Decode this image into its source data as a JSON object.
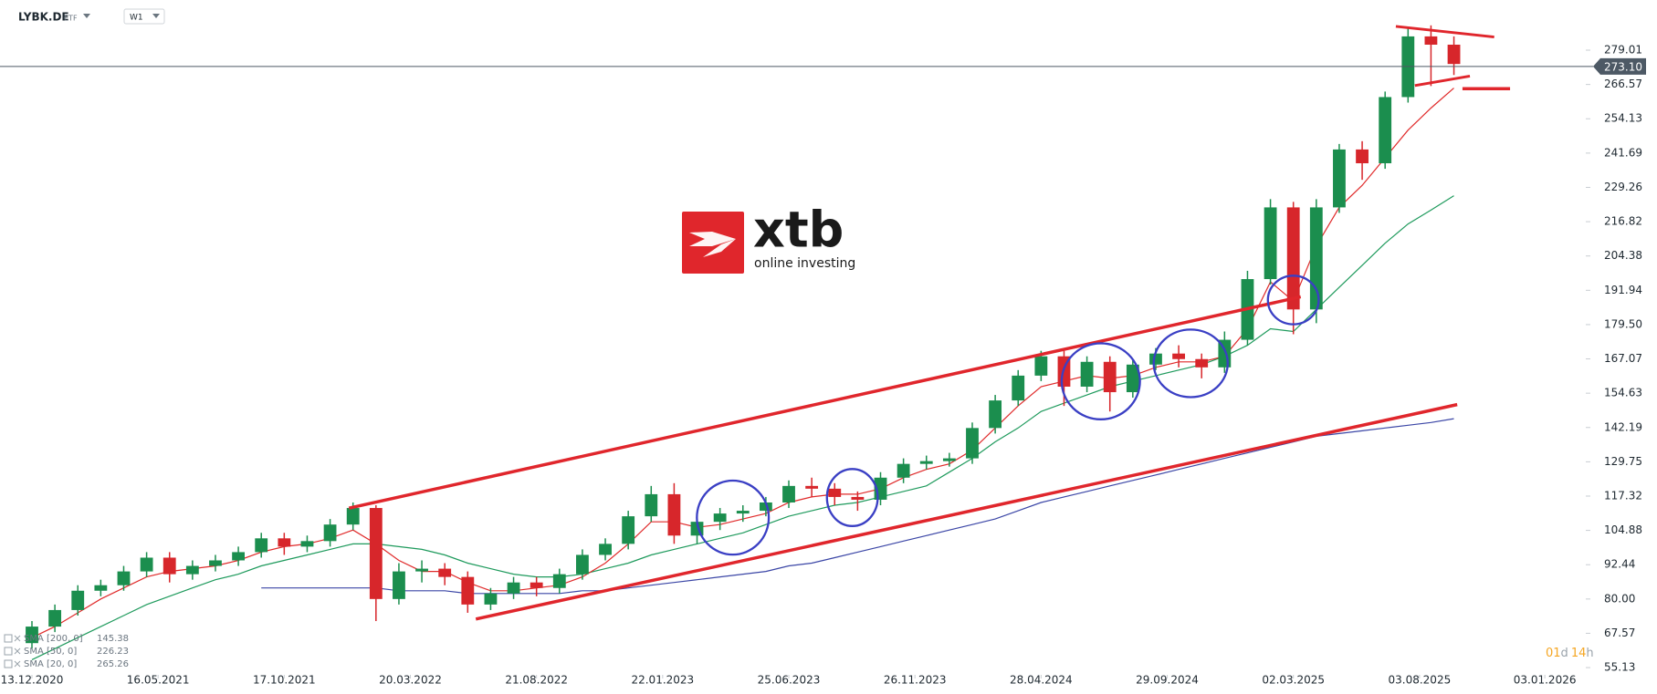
{
  "chart_data": {
    "type": "candlestick",
    "symbol": "LYBK.DE",
    "symbol_type": "ETF",
    "interval": "W1",
    "countdown": {
      "days": "01",
      "days_unit": "d",
      "hours": "14",
      "hours_unit": "h"
    },
    "watermark": {
      "brand": "xtb",
      "tagline": "online investing"
    },
    "up_color": "#1b8e4e",
    "down_color": "#d7262b",
    "grid": false,
    "x": [
      "13.12.2020",
      "10.01.2021",
      "07.02.2021",
      "07.03.2021",
      "04.04.2021",
      "02.05.2021",
      "30.05.2021",
      "27.06.2021",
      "25.07.2021",
      "22.08.2021",
      "19.09.2021",
      "17.10.2021",
      "14.11.2021",
      "12.12.2021",
      "09.01.2022",
      "06.02.2022",
      "06.03.2022",
      "03.04.2022",
      "01.05.2022",
      "29.05.2022",
      "26.06.2022",
      "24.07.2022",
      "21.08.2022",
      "18.09.2022",
      "16.10.2022",
      "13.11.2022",
      "11.12.2022",
      "08.01.2023",
      "05.02.2023",
      "05.03.2023",
      "02.04.2023",
      "30.04.2023",
      "28.05.2023",
      "25.06.2023",
      "23.07.2023",
      "20.08.2023",
      "17.09.2023",
      "15.10.2023",
      "12.11.2023",
      "10.12.2023",
      "07.01.2024",
      "04.02.2024",
      "03.03.2024",
      "31.03.2024",
      "28.04.2024",
      "26.05.2024",
      "23.06.2024",
      "21.07.2024",
      "18.08.2024",
      "15.09.2024",
      "13.10.2024",
      "10.11.2024",
      "08.12.2024",
      "05.01.2025",
      "02.02.2025",
      "02.03.2025",
      "30.03.2025",
      "27.04.2025",
      "25.05.2025",
      "22.06.2025",
      "20.07.2025",
      "17.08.2025",
      "14.09.2025"
    ],
    "open": [
      64,
      70,
      76,
      83,
      85,
      90,
      95,
      89,
      92,
      94,
      97,
      102,
      99,
      101,
      107,
      113,
      80,
      90,
      91,
      88,
      78,
      82,
      86,
      84,
      89,
      96,
      100,
      110,
      118,
      103,
      108,
      111,
      112,
      115,
      121,
      120,
      117,
      116,
      124,
      129,
      130,
      131,
      142,
      152,
      161,
      168,
      157,
      166,
      155,
      165,
      169,
      167,
      164,
      174,
      196,
      222,
      185,
      222,
      243,
      238,
      262,
      284,
      281
    ],
    "high": [
      72,
      78,
      85,
      87,
      92,
      97,
      97,
      94,
      96,
      99,
      104,
      104,
      103,
      109,
      115,
      114,
      93,
      94,
      93,
      90,
      84,
      88,
      88,
      91,
      98,
      102,
      112,
      121,
      122,
      110,
      113,
      114,
      117,
      123,
      124,
      122,
      119,
      126,
      131,
      132,
      133,
      144,
      154,
      163,
      170,
      170,
      168,
      168,
      167,
      171,
      172,
      169,
      177,
      199,
      225,
      224,
      225,
      245,
      246,
      264,
      287,
      288,
      284
    ],
    "low": [
      62,
      68,
      74,
      81,
      83,
      88,
      86,
      87,
      90,
      92,
      95,
      96,
      97,
      99,
      105,
      72,
      78,
      86,
      85,
      75,
      76,
      80,
      81,
      82,
      87,
      94,
      98,
      108,
      100,
      100,
      105,
      108,
      110,
      113,
      117,
      114,
      112,
      114,
      122,
      127,
      128,
      129,
      140,
      150,
      159,
      150,
      155,
      148,
      153,
      163,
      164,
      160,
      162,
      172,
      194,
      176,
      180,
      220,
      232,
      236,
      260,
      266,
      270
    ],
    "close": [
      70,
      76,
      83,
      85,
      90,
      95,
      89,
      92,
      94,
      97,
      102,
      99,
      101,
      107,
      113,
      80,
      90,
      91,
      88,
      78,
      82,
      86,
      84,
      89,
      96,
      100,
      110,
      118,
      103,
      108,
      111,
      112,
      115,
      121,
      120,
      117,
      116,
      124,
      129,
      130,
      131,
      142,
      152,
      161,
      168,
      157,
      166,
      155,
      165,
      169,
      167,
      164,
      174,
      196,
      222,
      185,
      222,
      243,
      238,
      262,
      284,
      281,
      274
    ],
    "series": [
      {
        "name": "SMA [200, 0]",
        "color": "#3b46a6",
        "values": [
          null,
          null,
          null,
          null,
          null,
          null,
          null,
          null,
          null,
          null,
          84,
          84,
          84,
          84,
          84,
          84,
          83,
          83,
          83,
          82,
          82,
          82,
          82,
          82,
          83,
          83,
          84,
          85,
          86,
          87,
          88,
          89,
          90,
          92,
          93,
          95,
          97,
          99,
          101,
          103,
          105,
          107,
          109,
          112,
          115,
          117,
          119,
          121,
          123,
          125,
          127,
          129,
          131,
          133,
          135,
          137,
          139,
          140,
          141,
          142,
          143,
          144,
          145.38
        ]
      },
      {
        "name": "SMA [50, 0]",
        "color": "#1e9a5c",
        "values": [
          58,
          62,
          66,
          70,
          74,
          78,
          81,
          84,
          87,
          89,
          92,
          94,
          96,
          98,
          100,
          100,
          99,
          98,
          96,
          93,
          91,
          89,
          88,
          88,
          89,
          91,
          93,
          96,
          98,
          100,
          102,
          104,
          107,
          110,
          112,
          114,
          115,
          117,
          119,
          121,
          126,
          131,
          137,
          142,
          148,
          151,
          154,
          157,
          159,
          161,
          163,
          165,
          168,
          172,
          178,
          177,
          185,
          193,
          201,
          209,
          216,
          221,
          226.23
        ]
      },
      {
        "name": "SMA [20, 0]",
        "color": "#e02a2a",
        "values": [
          66,
          70,
          75,
          80,
          84,
          88,
          90,
          91,
          92,
          94,
          97,
          99,
          100,
          102,
          105,
          100,
          94,
          90,
          90,
          86,
          83,
          83,
          84,
          85,
          88,
          93,
          100,
          108,
          108,
          106,
          107,
          109,
          111,
          115,
          117,
          118,
          118,
          120,
          124,
          127,
          129,
          134,
          142,
          150,
          157,
          159,
          161,
          160,
          161,
          164,
          166,
          166,
          168,
          178,
          195,
          188,
          208,
          222,
          230,
          240,
          250,
          258,
          265.26
        ]
      }
    ],
    "last_price": {
      "value": 273.1,
      "label": "273.10"
    },
    "xlim": [
      "04.11.2020",
      "22.02.2026"
    ],
    "xticks": [
      "13.12.2020",
      "16.05.2021",
      "17.10.2021",
      "20.03.2022",
      "21.08.2022",
      "22.01.2023",
      "25.06.2023",
      "26.11.2023",
      "28.04.2024",
      "29.09.2024",
      "02.03.2025",
      "03.08.2025",
      "03.01.2026"
    ],
    "ylim": [
      52.5,
      297.2
    ],
    "yticks": [
      55.13,
      67.57,
      {
        "value": 80,
        "label": "80.00"
      },
      92.44,
      104.88,
      117.32,
      129.75,
      142.19,
      154.63,
      167.07,
      {
        "value": 179.5,
        "label": "179.50"
      },
      191.94,
      204.38,
      216.82,
      229.26,
      241.69,
      254.13,
      266.57,
      279.01
    ]
  }
}
